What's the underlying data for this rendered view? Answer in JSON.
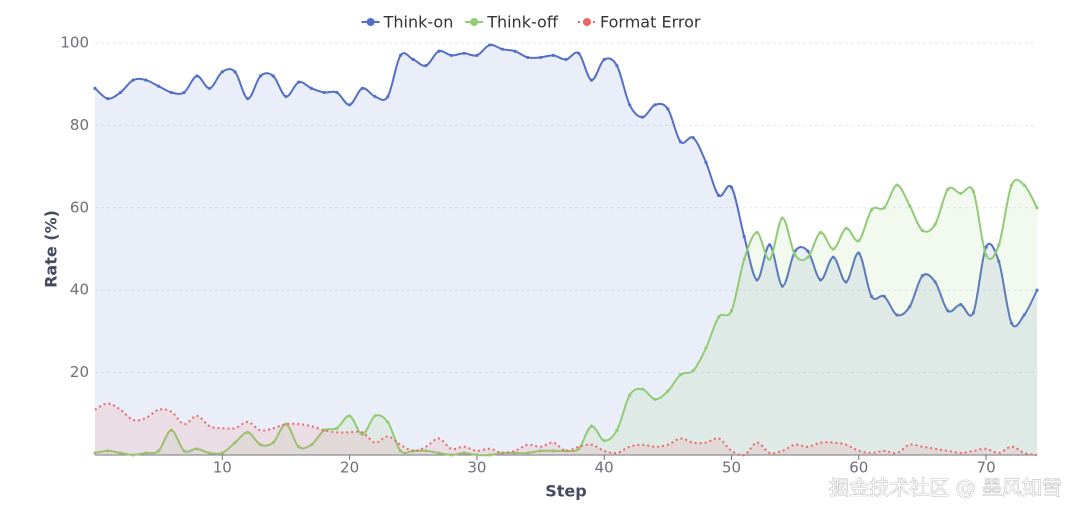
{
  "chart_data": {
    "type": "line",
    "x": [
      0,
      1,
      2,
      3,
      4,
      5,
      6,
      7,
      8,
      9,
      10,
      11,
      12,
      13,
      14,
      15,
      16,
      17,
      18,
      19,
      20,
      21,
      22,
      23,
      24,
      25,
      26,
      27,
      28,
      29,
      30,
      31,
      32,
      33,
      34,
      35,
      36,
      37,
      38,
      39,
      40,
      41,
      42,
      43,
      44,
      45,
      46,
      47,
      48,
      49,
      50,
      51,
      52,
      53,
      54,
      55,
      56,
      57,
      58,
      59,
      60,
      61,
      62,
      63,
      64,
      65,
      66,
      67,
      68,
      69,
      70,
      71,
      72,
      73,
      74
    ],
    "series": [
      {
        "name": "Think-on",
        "color": "#5470c6",
        "dashed": false,
        "values": [
          89,
          86.5,
          88,
          91,
          91,
          89.5,
          88,
          88,
          92,
          89,
          93,
          93,
          86.5,
          92,
          92,
          87,
          90.5,
          89,
          88,
          88,
          85,
          89,
          87,
          87,
          97,
          96,
          94.5,
          98,
          97,
          97.5,
          97,
          99.5,
          98.5,
          98,
          96.5,
          96.5,
          97,
          96,
          97.5,
          91,
          96,
          94.5,
          85,
          82,
          85,
          84,
          76,
          77,
          71,
          63,
          65,
          53,
          42.5,
          51,
          41,
          49.5,
          49.5,
          42.5,
          48,
          42,
          49,
          38.5,
          38.5,
          34,
          36,
          43.5,
          42,
          35,
          36.5,
          34.5,
          50.5,
          47,
          32,
          34,
          40
        ]
      },
      {
        "name": "Think-off",
        "color": "#91cc75",
        "dashed": false,
        "values": [
          0.5,
          1,
          0.5,
          0,
          0.5,
          1,
          6,
          1,
          1.5,
          0.5,
          0.5,
          3,
          5.5,
          2.5,
          3,
          7.5,
          2,
          2.5,
          6,
          6.5,
          9.5,
          5,
          9.5,
          8,
          1,
          1,
          1,
          0.5,
          0,
          0.5,
          0,
          0,
          0.5,
          0.5,
          0.5,
          1,
          1,
          1,
          1.5,
          7,
          3.5,
          6,
          14.5,
          16,
          13.5,
          15.5,
          19.5,
          20.5,
          26,
          33.5,
          35,
          47.5,
          54,
          47.5,
          57.5,
          48.5,
          48,
          54,
          50,
          55,
          52,
          59.5,
          60,
          65.5,
          60.5,
          54.5,
          56,
          64.5,
          63.5,
          64,
          48.5,
          51,
          65.5,
          65.5,
          60
        ]
      },
      {
        "name": "Format Error",
        "color": "#ee6666",
        "dashed": true,
        "values": [
          11,
          12.5,
          11,
          8.5,
          9,
          11,
          10.5,
          7.5,
          9.5,
          7,
          6.5,
          6.5,
          8,
          6,
          6.5,
          7.5,
          7.5,
          7,
          6,
          5.5,
          5.5,
          5.5,
          3,
          4.5,
          2.5,
          1,
          2,
          4,
          1.5,
          2,
          1,
          1.5,
          0.5,
          1,
          2.5,
          2,
          3,
          1,
          2,
          2.5,
          1,
          0.5,
          2,
          2.5,
          2,
          2.5,
          4,
          3,
          3,
          4,
          1,
          0,
          3,
          0.5,
          1,
          2.5,
          2,
          3,
          3,
          2.5,
          1,
          0.5,
          1,
          0.5,
          2.5,
          2,
          1.5,
          1,
          0.5,
          1,
          1.5,
          0.5,
          2,
          0.5,
          0
        ]
      }
    ],
    "xlabel": "Step",
    "ylabel": "Rate (%)",
    "xlim": [
      0,
      74
    ],
    "xticks": [
      10,
      20,
      30,
      40,
      50,
      60,
      70
    ],
    "ylim": [
      0,
      100
    ],
    "yticks": [
      20,
      40,
      60,
      80,
      100
    ],
    "grid": true,
    "area": true,
    "smooth": true,
    "legend": "top",
    "watermark": "掘金技术社区 @ 墨风如雪"
  }
}
